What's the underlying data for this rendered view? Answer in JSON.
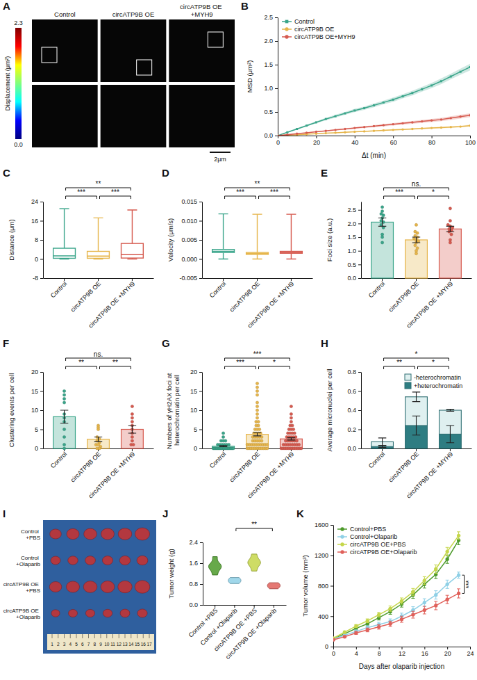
{
  "chart_data": [
    {
      "panel": "B",
      "type": "line",
      "x_label": "Δt (min)",
      "y_label": "MSD (μm²)",
      "legend": "top-left",
      "x": [
        0,
        5,
        10,
        15,
        20,
        25,
        30,
        35,
        40,
        45,
        50,
        55,
        60,
        65,
        70,
        75,
        80,
        85,
        90,
        95,
        100
      ],
      "xlim": [
        0,
        100
      ],
      "xticks": [
        0,
        20,
        40,
        60,
        80,
        100
      ],
      "ylim": [
        0,
        2.5
      ],
      "yticks": [
        {
          "value": 0,
          "label": "0.0"
        },
        0.5,
        {
          "value": 1,
          "label": "1.0"
        },
        1.5,
        {
          "value": 2,
          "label": "2.0"
        },
        2.5
      ],
      "series": [
        {
          "name": "Control",
          "color": "#3aa58a",
          "marker": "square",
          "values": [
            0,
            0.07,
            0.14,
            0.21,
            0.28,
            0.35,
            0.41,
            0.47,
            0.53,
            0.58,
            0.64,
            0.7,
            0.76,
            0.83,
            0.9,
            0.98,
            1.06,
            1.15,
            1.25,
            1.35,
            1.45
          ],
          "errors": [
            0,
            0.01,
            0.015,
            0.02,
            0.02,
            0.025,
            0.03,
            0.03,
            0.035,
            0.035,
            0.04,
            0.04,
            0.045,
            0.045,
            0.05,
            0.05,
            0.055,
            0.06,
            0.06,
            0.065,
            0.07
          ]
        },
        {
          "name": "circATP9B OE",
          "color": "#e6b54a",
          "marker": "circle",
          "values": [
            0,
            0.01,
            0.02,
            0.03,
            0.04,
            0.05,
            0.06,
            0.07,
            0.08,
            0.09,
            0.1,
            0.11,
            0.12,
            0.13,
            0.14,
            0.15,
            0.16,
            0.17,
            0.18,
            0.19,
            0.21
          ],
          "errors": [
            0,
            0.002,
            0.003,
            0.004,
            0.005,
            0.006,
            0.007,
            0.008,
            0.009,
            0.01,
            0.01,
            0.011,
            0.012,
            0.013,
            0.014,
            0.015,
            0.016,
            0.017,
            0.018,
            0.019,
            0.02
          ]
        },
        {
          "name": "circATP9B OE+MYH9",
          "color": "#d65a4f",
          "marker": "circle",
          "values": [
            0,
            0.02,
            0.04,
            0.06,
            0.08,
            0.1,
            0.12,
            0.14,
            0.16,
            0.18,
            0.2,
            0.22,
            0.24,
            0.26,
            0.28,
            0.3,
            0.32,
            0.34,
            0.37,
            0.4,
            0.43
          ],
          "errors": [
            0,
            0.004,
            0.006,
            0.008,
            0.01,
            0.012,
            0.014,
            0.016,
            0.018,
            0.02,
            0.022,
            0.024,
            0.026,
            0.028,
            0.03,
            0.032,
            0.034,
            0.036,
            0.038,
            0.04,
            0.042
          ]
        }
      ]
    },
    {
      "panel": "C",
      "type": "box",
      "y_label": "Distance (μm)",
      "categories": [
        "Control",
        "circATP9B OE",
        "circATP9B OE +MYH9"
      ],
      "colors": [
        "#3aa58a",
        "#e6b54a",
        "#d65a4f"
      ],
      "boxes": [
        {
          "min": 0,
          "q1": 0.3,
          "median": 1.3,
          "q3": 4.5,
          "max": 21
        },
        {
          "min": 0,
          "q1": 0.3,
          "median": 1.2,
          "q3": 3.2,
          "max": 17.2
        },
        {
          "min": 0,
          "q1": 0.4,
          "median": 1.8,
          "q3": 6.5,
          "max": 20.5
        }
      ],
      "ylim": [
        -8,
        24
      ],
      "yticks": [
        -8,
        0,
        8,
        16,
        24
      ],
      "annotations": [
        {
          "groups": [
            0,
            1
          ],
          "text": "***"
        },
        {
          "groups": [
            1,
            2
          ],
          "text": "***"
        },
        {
          "groups": [
            0,
            2
          ],
          "text": "**"
        }
      ]
    },
    {
      "panel": "D",
      "type": "box",
      "y_label": "Velocity (μm/s)",
      "categories": [
        "Control",
        "circATP9B OE",
        "circATP9B OE +MYH9"
      ],
      "colors": [
        "#3aa58a",
        "#e6b54a",
        "#d65a4f"
      ],
      "boxes": [
        {
          "min": 0,
          "q1": 0.0017,
          "median": 0.002,
          "q3": 0.0025,
          "max": 0.0118
        },
        {
          "min": 0,
          "q1": 0.0012,
          "median": 0.0014,
          "q3": 0.0017,
          "max": 0.0117
        },
        {
          "min": 0,
          "q1": 0.0015,
          "median": 0.0017,
          "q3": 0.002,
          "max": 0.0117
        }
      ],
      "ylim": [
        -0.005,
        0.015
      ],
      "yticks": [
        -0.005,
        {
          "value": 0,
          "label": "0.000"
        },
        0.005,
        {
          "value": 0.01,
          "label": "0.010"
        },
        0.015
      ],
      "annotations": [
        {
          "groups": [
            0,
            1
          ],
          "text": "***"
        },
        {
          "groups": [
            1,
            2
          ],
          "text": "***"
        },
        {
          "groups": [
            0,
            2
          ],
          "text": "**"
        }
      ]
    },
    {
      "panel": "E",
      "type": "bar",
      "y_label": "Foci size (a.u.)",
      "categories": [
        "Control",
        "circATP9B OE",
        "circATP9B OE +MYH9"
      ],
      "colors": [
        "#3aa58a",
        "#e6b54a",
        "#d65a4f"
      ],
      "values": [
        2.05,
        1.4,
        1.8
      ],
      "errors": [
        0.15,
        0.1,
        0.1
      ],
      "points": [
        [
          2.6,
          2.45,
          2.35,
          2.3,
          2.2,
          2.1,
          2.05,
          1.95,
          1.85,
          1.6,
          1.5,
          1.3
        ],
        [
          1.95,
          1.7,
          1.65,
          1.55,
          1.5,
          1.45,
          1.4,
          1.35,
          1.3,
          1.2,
          1.1,
          1.0,
          0.9
        ],
        [
          2.55,
          2.1,
          1.95,
          1.9,
          1.85,
          1.8,
          1.75,
          1.7,
          1.6,
          1.4,
          1.3
        ]
      ],
      "ylim": [
        0,
        2.8
      ],
      "yticks": [
        {
          "value": 0,
          "label": "0.0"
        },
        0.5,
        {
          "value": 1,
          "label": "1.0"
        },
        1.5,
        {
          "value": 2,
          "label": "2.0"
        },
        2.5
      ],
      "annotations": [
        {
          "groups": [
            0,
            1
          ],
          "text": "***"
        },
        {
          "groups": [
            1,
            2
          ],
          "text": "*"
        },
        {
          "groups": [
            0,
            2
          ],
          "text": "ns."
        }
      ]
    },
    {
      "panel": "F",
      "type": "bar",
      "y_label": "Clustering events per cell",
      "categories": [
        "Control",
        "circATP9B OE",
        "circATP9B OE +MYH9"
      ],
      "colors": [
        "#3aa58a",
        "#e6b54a",
        "#d65a4f"
      ],
      "values": [
        8.3,
        2.4,
        5
      ],
      "errors": [
        1.7,
        0.6,
        1
      ],
      "points": [
        [
          15,
          14,
          13,
          12,
          9,
          8,
          7,
          5,
          3,
          1,
          0
        ],
        [
          6,
          5.5,
          5,
          3,
          2.5,
          2,
          1.5,
          1,
          1,
          0,
          0.5,
          0
        ],
        [
          11,
          9,
          8,
          7,
          6,
          5,
          4,
          3,
          2,
          1,
          1
        ]
      ],
      "ylim": [
        0,
        20
      ],
      "yticks": [
        0,
        5,
        10,
        15,
        20
      ],
      "annotations": [
        {
          "groups": [
            0,
            1
          ],
          "text": "**"
        },
        {
          "groups": [
            1,
            2
          ],
          "text": "**"
        },
        {
          "groups": [
            0,
            2
          ],
          "text": "ns."
        }
      ]
    },
    {
      "panel": "G",
      "type": "bar",
      "y_label": "Numbers of γH2AX foci at heterochromatin per cell",
      "categories": [
        "Control",
        "circATP9B OE",
        "circATP9B OE +MYH9"
      ],
      "colors": [
        "#3aa58a",
        "#e6b54a",
        "#d65a4f"
      ],
      "values": [
        0.6,
        3.7,
        2.5
      ],
      "errors": [
        0.15,
        0.4,
        0.3
      ],
      "points": [
        [
          0,
          0,
          0,
          0,
          0,
          0,
          0,
          0,
          0,
          0,
          0,
          0,
          0,
          0,
          0,
          0,
          0,
          0,
          1,
          1,
          1,
          1,
          1,
          1,
          2,
          2,
          2,
          3,
          4
        ],
        [
          0,
          0,
          0,
          0,
          0,
          0,
          0,
          0,
          0,
          0,
          0,
          0,
          1,
          1,
          1,
          1,
          1,
          1,
          1,
          1,
          1,
          1,
          2,
          2,
          2,
          2,
          2,
          3,
          3,
          3,
          3,
          3,
          4,
          4,
          4,
          4,
          5,
          5,
          5,
          6,
          6,
          7,
          7,
          8,
          9,
          10,
          11,
          12,
          14,
          15,
          16,
          17
        ],
        [
          0,
          0,
          0,
          0,
          0,
          0,
          0,
          0,
          0,
          0,
          0,
          0,
          1,
          1,
          1,
          1,
          1,
          1,
          1,
          1,
          2,
          2,
          2,
          2,
          2,
          2,
          3,
          3,
          3,
          3,
          3,
          4,
          4,
          4,
          4,
          5,
          5,
          5,
          6,
          6,
          7,
          8,
          9,
          11
        ]
      ],
      "ylim": [
        0,
        20
      ],
      "yticks": [
        0,
        5,
        10,
        15,
        20
      ],
      "annotations": [
        {
          "groups": [
            0,
            1
          ],
          "text": "***"
        },
        {
          "groups": [
            1,
            2
          ],
          "text": "*"
        },
        {
          "groups": [
            0,
            2
          ],
          "text": "***"
        }
      ]
    },
    {
      "panel": "H",
      "type": "bar",
      "stacked": true,
      "legend": "top-right",
      "y_label": "Average micronuclei per cell",
      "categories": [
        "Control",
        "circATP9B OE",
        "circATP9B OE +MYH9"
      ],
      "series": [
        {
          "name": "+heterochromatin",
          "color": "#2e7d82",
          "values": [
            0.02,
            0.24,
            0.15
          ],
          "errors": [
            0.01,
            0.1,
            0.09
          ]
        },
        {
          "name": "-heterochromatin",
          "color": "#dff0f0",
          "values": [
            0.05,
            0.3,
            0.25
          ],
          "errors": [
            0.04,
            0.05,
            0.01
          ]
        }
      ],
      "ylim": [
        0,
        0.8
      ],
      "yticks": [
        {
          "value": 0,
          "label": "0.0"
        },
        0.2,
        0.4,
        0.6,
        0.8
      ],
      "annotations": [
        {
          "groups": [
            0,
            1
          ],
          "text": "**"
        },
        {
          "groups": [
            1,
            2
          ],
          "text": "*"
        },
        {
          "groups": [
            0,
            2
          ],
          "text": "*"
        }
      ]
    },
    {
      "panel": "J",
      "type": "violin",
      "y_label": "Tumor weight (g)",
      "categories": [
        "Control +PBS",
        "Control +Olaparib",
        "circATP9B OE +PBS",
        "circATP9B OE +Olaparib"
      ],
      "colors": [
        "#4c9a2a",
        "#8fd0e6",
        "#c5d64a",
        "#e0605a"
      ],
      "points": [
        [
          1.15,
          1.35,
          1.45,
          1.5,
          1.6,
          1.85
        ],
        [
          0.82,
          0.88,
          0.92,
          0.95,
          1.0,
          1.05
        ],
        [
          1.3,
          1.5,
          1.6,
          1.65,
          1.75,
          1.95
        ],
        [
          0.62,
          0.7,
          0.72,
          0.75,
          0.8,
          0.85
        ]
      ],
      "ylim": [
        0,
        2.4
      ],
      "yticks": [
        {
          "value": 0,
          "label": "0.0"
        },
        0.8,
        1.6,
        2.4
      ],
      "annotations": [
        {
          "groups": [
            1,
            3
          ],
          "text": "**"
        }
      ]
    },
    {
      "panel": "K",
      "type": "line",
      "x_label": "Days after olaparib injection",
      "y_label": "Tumor volume (mm³)",
      "legend": "top-left",
      "x": [
        0,
        2,
        4,
        6,
        8,
        10,
        12,
        14,
        16,
        18,
        20,
        22
      ],
      "xlim": [
        0,
        24
      ],
      "xticks": [
        0,
        4,
        8,
        12,
        16,
        20,
        24
      ],
      "ylim": [
        0,
        1600
      ],
      "yticks": [
        0,
        400,
        800,
        1200,
        1600
      ],
      "series": [
        {
          "name": "Control+PBS",
          "color": "#4c9a2a",
          "marker": "circle",
          "values": [
            100,
            170,
            240,
            300,
            380,
            460,
            560,
            680,
            820,
            950,
            1150,
            1400
          ],
          "errors": [
            10,
            15,
            20,
            25,
            30,
            35,
            40,
            45,
            50,
            55,
            55,
            60
          ]
        },
        {
          "name": "Control+Olaparib",
          "color": "#8fd0e6",
          "marker": "circle",
          "values": [
            100,
            150,
            200,
            250,
            290,
            330,
            400,
            480,
            580,
            680,
            820,
            940
          ],
          "errors": [
            10,
            15,
            20,
            25,
            30,
            35,
            40,
            45,
            50,
            55,
            55,
            40
          ]
        },
        {
          "name": "circATP9B OE+PBS",
          "color": "#c5d64a",
          "marker": "circle",
          "values": [
            110,
            190,
            270,
            340,
            420,
            500,
            600,
            720,
            870,
            1020,
            1250,
            1460
          ],
          "errors": [
            10,
            15,
            20,
            25,
            30,
            35,
            40,
            45,
            50,
            55,
            55,
            50
          ]
        },
        {
          "name": "circATP9B OE+Olaparib",
          "color": "#e0605a",
          "marker": "circle",
          "values": [
            90,
            130,
            180,
            220,
            260,
            300,
            360,
            420,
            480,
            540,
            620,
            700
          ],
          "errors": [
            10,
            15,
            20,
            25,
            30,
            35,
            40,
            45,
            50,
            55,
            55,
            60
          ]
        }
      ],
      "annotations": [
        {
          "series": [
            1,
            3
          ],
          "text": "***"
        }
      ]
    }
  ],
  "images": {
    "A": {
      "panel": "A",
      "titles": [
        "Control",
        "circATP9B OE",
        "circATP9B OE +MYH9"
      ],
      "colorbar": {
        "label": "Displacement (μm²)",
        "range": [
          0,
          2.3
        ],
        "ticks": [
          {
            "value": 0,
            "label": "0.0"
          },
          2.3
        ]
      },
      "scale_bar": "2µm"
    },
    "I": {
      "panel": "I",
      "rows": [
        "Control +PBS",
        "Control +Olaparib",
        "circATP9B OE +PBS",
        "circATP9B OE +Olaparib"
      ],
      "ruler": [
        1,
        2,
        3,
        4,
        5,
        6,
        7,
        8,
        9,
        10,
        11,
        12,
        13,
        14,
        15,
        16,
        17
      ]
    }
  }
}
